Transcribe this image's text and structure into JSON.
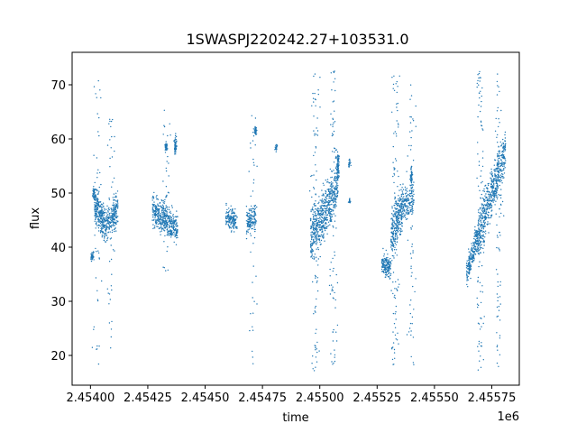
{
  "chart_data": {
    "type": "scatter",
    "title": "1SWASPJ220242.27+103531.0",
    "xlabel": "time",
    "ylabel": "flux",
    "x_offset_label": "1e6",
    "xlim": [
      2453920,
      2455870
    ],
    "ylim": [
      14.5,
      76
    ],
    "x_ticks": [
      2454000,
      2454250,
      2454500,
      2454750,
      2455000,
      2455250,
      2455500,
      2455750
    ],
    "x_tick_labels": [
      "2.45400",
      "2.45425",
      "2.45450",
      "2.45475",
      "2.45500",
      "2.45525",
      "2.45550",
      "2.45575"
    ],
    "y_ticks": [
      20,
      30,
      40,
      50,
      60,
      70
    ],
    "y_tick_labels": [
      "20",
      "30",
      "40",
      "50",
      "60",
      "70"
    ],
    "grid": false,
    "marker_color": "#1f77b4",
    "series": [
      {
        "segments": [
          {
            "x0": 2454002,
            "x1": 2454015,
            "y_start": 38.0,
            "y_end": 38.5,
            "spread": 1.2,
            "n": 40
          },
          {
            "x0": 2454018,
            "x1": 2454065,
            "y_start": 48.0,
            "y_end": 44.0,
            "spread": 4.5,
            "n": 260
          },
          {
            "x0": 2454065,
            "x1": 2454120,
            "y_start": 44.0,
            "y_end": 47.0,
            "spread": 4.5,
            "n": 220
          },
          {
            "x0": 2454270,
            "x1": 2454330,
            "y_start": 47.0,
            "y_end": 45.0,
            "spread": 4.5,
            "n": 260
          },
          {
            "x0": 2454330,
            "x1": 2454380,
            "y_start": 45.0,
            "y_end": 43.5,
            "spread": 4.0,
            "n": 200
          },
          {
            "x0": 2454590,
            "x1": 2454640,
            "y_start": 45.5,
            "y_end": 45.0,
            "spread": 3.0,
            "n": 150
          },
          {
            "x0": 2454680,
            "x1": 2454720,
            "y_start": 44.5,
            "y_end": 45.5,
            "spread": 3.5,
            "n": 140
          },
          {
            "x0": 2454960,
            "x1": 2455020,
            "y_start": 42.0,
            "y_end": 46.0,
            "spread": 7.0,
            "n": 320
          },
          {
            "x0": 2455020,
            "x1": 2455080,
            "y_start": 46.0,
            "y_end": 52.0,
            "spread": 7.0,
            "n": 300
          },
          {
            "x0": 2455270,
            "x1": 2455310,
            "y_start": 37.0,
            "y_end": 36.0,
            "spread": 3.0,
            "n": 160
          },
          {
            "x0": 2455310,
            "x1": 2455360,
            "y_start": 42.0,
            "y_end": 48.0,
            "spread": 7.0,
            "n": 280
          },
          {
            "x0": 2455360,
            "x1": 2455410,
            "y_start": 48.0,
            "y_end": 49.0,
            "spread": 4.0,
            "n": 150
          },
          {
            "x0": 2455640,
            "x1": 2455690,
            "y_start": 35.0,
            "y_end": 42.0,
            "spread": 4.0,
            "n": 220
          },
          {
            "x0": 2455690,
            "x1": 2455750,
            "y_start": 42.0,
            "y_end": 50.0,
            "spread": 7.0,
            "n": 300
          },
          {
            "x0": 2455750,
            "x1": 2455810,
            "y_start": 50.0,
            "y_end": 58.0,
            "spread": 6.0,
            "n": 280
          }
        ],
        "clumps": [
          {
            "x": 2454015,
            "y": 50.0,
            "spread": 1.5,
            "n": 40
          },
          {
            "x": 2454370,
            "y": 59.0,
            "spread": 2.5,
            "n": 60
          },
          {
            "x": 2454330,
            "y": 58.5,
            "spread": 1.5,
            "n": 40
          },
          {
            "x": 2454720,
            "y": 61.5,
            "spread": 1.2,
            "n": 40
          },
          {
            "x": 2454810,
            "y": 58.5,
            "spread": 1.0,
            "n": 20
          },
          {
            "x": 2455130,
            "y": 55.5,
            "spread": 1.0,
            "n": 20
          },
          {
            "x": 2455130,
            "y": 48.5,
            "spread": 0.8,
            "n": 15
          },
          {
            "x": 2455080,
            "y": 55.0,
            "spread": 3.0,
            "n": 70
          },
          {
            "x": 2455400,
            "y": 53.0,
            "spread": 3.0,
            "n": 50
          }
        ],
        "outlier_columns": [
          {
            "x": 2454030,
            "ymin": 18,
            "ymax": 71,
            "n": 45
          },
          {
            "x": 2454090,
            "ymin": 20,
            "ymax": 64,
            "n": 40
          },
          {
            "x": 2454330,
            "ymin": 35,
            "ymax": 67,
            "n": 35
          },
          {
            "x": 2454710,
            "ymin": 18,
            "ymax": 66,
            "n": 40
          },
          {
            "x": 2454980,
            "ymin": 17,
            "ymax": 72,
            "n": 90
          },
          {
            "x": 2455060,
            "ymin": 17,
            "ymax": 73,
            "n": 90
          },
          {
            "x": 2455330,
            "ymin": 17,
            "ymax": 72,
            "n": 90
          },
          {
            "x": 2455400,
            "ymin": 17,
            "ymax": 70,
            "n": 60
          },
          {
            "x": 2455700,
            "ymin": 17,
            "ymax": 73,
            "n": 90
          },
          {
            "x": 2455780,
            "ymin": 17,
            "ymax": 72,
            "n": 80
          }
        ]
      }
    ]
  }
}
